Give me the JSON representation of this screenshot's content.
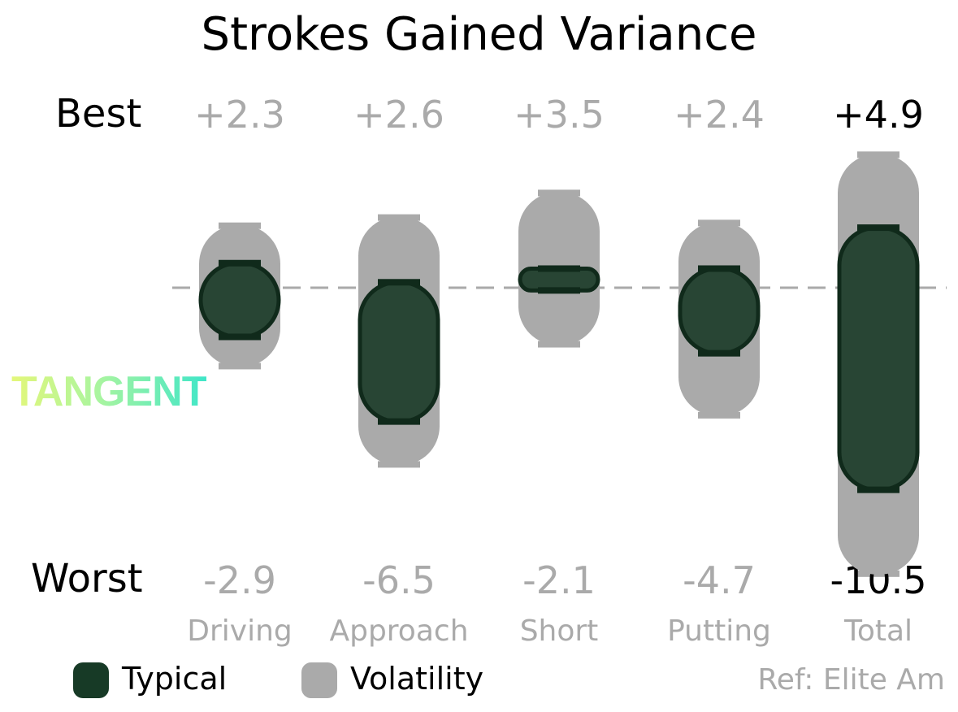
{
  "title": "Strokes Gained Variance",
  "row_labels": {
    "best": "Best",
    "worst": "Worst"
  },
  "logo_text": "TANGENT",
  "reference": "Ref: Elite Am",
  "legend": [
    {
      "label": "Typical",
      "color": "#173a26"
    },
    {
      "label": "Volatility",
      "color": "#aaaaaa"
    }
  ],
  "colors": {
    "typical_fill": "#284534",
    "typical_stroke": "#102a1b",
    "volatility": "#aaaaaa",
    "value_text": "#aaaaaa",
    "zero_line": "#aaaaaa"
  },
  "chart_data": {
    "type": "range",
    "title": "Strokes Gained Variance",
    "categories": [
      "Driving",
      "Approach",
      "Short",
      "Putting",
      "Total"
    ],
    "best_labels": [
      "+2.3",
      "+2.6",
      "+3.5",
      "+2.4",
      "+4.9"
    ],
    "worst_labels": [
      "-2.9",
      "-6.5",
      "-2.1",
      "-4.7",
      "-10.5"
    ],
    "series": [
      {
        "name": "Volatility",
        "low": [
          -2.9,
          -6.5,
          -2.1,
          -4.7,
          -10.5
        ],
        "high": [
          2.3,
          2.6,
          3.5,
          2.4,
          4.9
        ]
      },
      {
        "name": "Typical",
        "low": [
          -1.8,
          -4.9,
          -0.1,
          -2.4,
          -7.4
        ],
        "high": [
          0.9,
          0.2,
          0.7,
          0.7,
          2.2
        ]
      }
    ],
    "zero_line": 0,
    "ylim": [
      -10.5,
      4.9
    ],
    "legend_position": "bottom-left"
  }
}
